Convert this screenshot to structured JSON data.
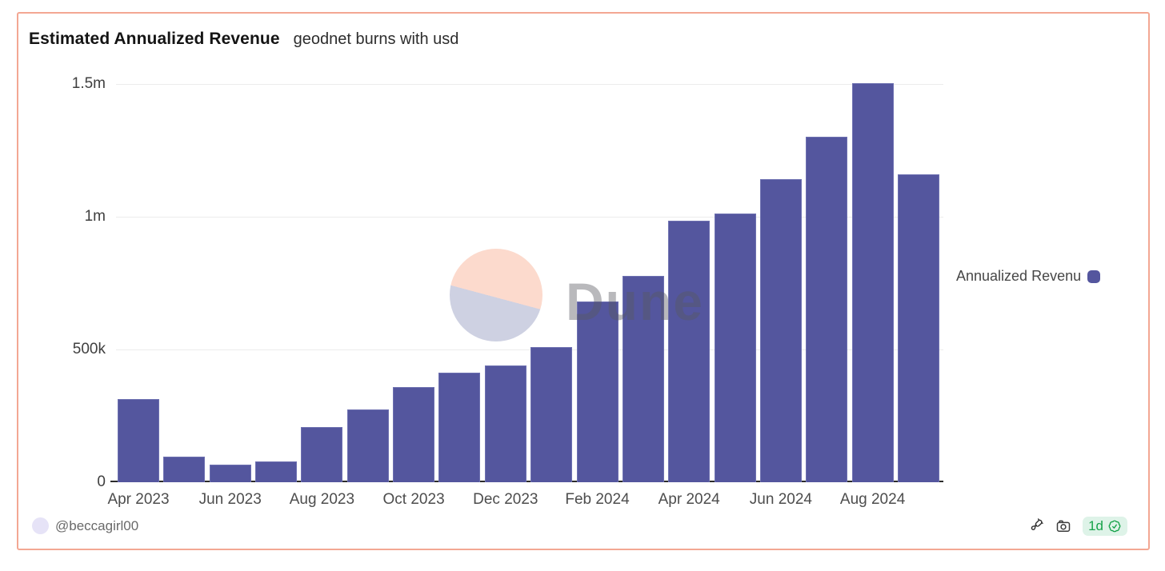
{
  "page": {
    "title": "Estimated Annualized Revenue",
    "subtitle": "geodnet burns with usd"
  },
  "chart_data": {
    "type": "bar",
    "title": "Estimated Annualized Revenue",
    "subtitle": "geodnet burns with usd",
    "categories": [
      "Apr 2023",
      "May 2023",
      "Jun 2023",
      "Jul 2023",
      "Aug 2023",
      "Sep 2023",
      "Oct 2023",
      "Nov 2023",
      "Dec 2023",
      "Jan 2024",
      "Feb 2024",
      "Mar 2024",
      "Apr 2024",
      "May 2024",
      "Jun 2024",
      "Jul 2024",
      "Aug 2024",
      "Sep 2024"
    ],
    "series": [
      {
        "name": "Annualized Revenue",
        "color": "#54569e",
        "values": [
          312000,
          95000,
          66000,
          78000,
          207000,
          275000,
          357000,
          414000,
          439000,
          508000,
          681000,
          777000,
          984000,
          1011000,
          1141000,
          1301000,
          1502000,
          1159000
        ]
      }
    ],
    "x_tick_labels": [
      "Apr 2023",
      "Jun 2023",
      "Aug 2023",
      "Oct 2023",
      "Dec 2023",
      "Feb 2024",
      "Apr 2024",
      "Jun 2024",
      "Aug 2024"
    ],
    "y_ticks": [
      {
        "label": "1.5m",
        "value": 1500000
      },
      {
        "label": "1m",
        "value": 1000000
      },
      {
        "label": "500k",
        "value": 500000
      },
      {
        "label": "0",
        "value": 0
      }
    ],
    "ylim": [
      0,
      1500000
    ],
    "grid": true,
    "legend_position": "right",
    "units": "usd"
  },
  "legend": {
    "label": "Annualized Revenu"
  },
  "watermark": {
    "text": "Dune"
  },
  "footer": {
    "author": "@beccagirl00",
    "freshness": "1d"
  },
  "colors": {
    "bar": "#54569e",
    "card_border": "#f3a793",
    "badge_text": "#17a34a",
    "badge_bg": "#def3e8",
    "watermark_top": "#fcdacd",
    "watermark_bottom": "#ced1e2",
    "avatar_bg": "#e6e3f7"
  }
}
